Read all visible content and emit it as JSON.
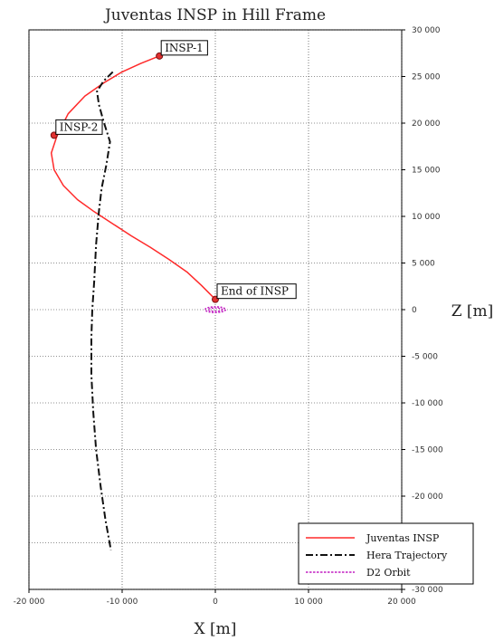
{
  "chart_data": {
    "type": "line",
    "title": "Juventas INSP in Hill Frame",
    "xlabel": "X [m]",
    "ylabel": "Z [m]",
    "xlim": [
      -20000,
      20000
    ],
    "ylim": [
      -30000,
      30000
    ],
    "x_ticks": [
      -20000,
      -10000,
      0,
      10000,
      20000
    ],
    "x_tick_labels": [
      "-20 000",
      "-10 000",
      "0",
      "10 000",
      "20 000"
    ],
    "y_ticks": [
      30000,
      25000,
      20000,
      15000,
      10000,
      5000,
      0,
      -5000,
      -10000,
      -15000,
      -20000,
      -25000,
      -30000
    ],
    "y_tick_labels": [
      "30 000",
      "25 000",
      "20 000",
      "15 000",
      "10 000",
      "5 000",
      "0",
      "-5 000",
      "-10 000",
      "-15 000",
      "-20 000",
      "-25 000",
      "-30 000"
    ],
    "grid": true,
    "legend_position": "bottom-right",
    "series": [
      {
        "name": "Juventas INSP",
        "color": "#ff2a2a",
        "style": "solid",
        "points": [
          [
            -6000,
            27200
          ],
          [
            -8000,
            26400
          ],
          [
            -10000,
            25500
          ],
          [
            -12000,
            24300
          ],
          [
            -14000,
            22900
          ],
          [
            -15800,
            21000
          ],
          [
            -17000,
            18600
          ],
          [
            -17600,
            16800
          ],
          [
            -17300,
            15000
          ],
          [
            -16300,
            13300
          ],
          [
            -14800,
            11800
          ],
          [
            -13000,
            10500
          ],
          [
            -11000,
            9200
          ],
          [
            -9000,
            7900
          ],
          [
            -7000,
            6700
          ],
          [
            -5000,
            5400
          ],
          [
            -3000,
            4000
          ],
          [
            -1500,
            2600
          ],
          [
            0,
            1100
          ]
        ]
      },
      {
        "name": "Hera Trajectory",
        "color": "#111111",
        "style": "dashdot",
        "points": [
          [
            -11000,
            25500
          ],
          [
            -12000,
            24500
          ],
          [
            -12700,
            23400
          ],
          [
            -12500,
            22000
          ],
          [
            -12000,
            20200
          ],
          [
            -11300,
            18000
          ],
          [
            -11700,
            15500
          ],
          [
            -12200,
            13000
          ],
          [
            -12500,
            10500
          ],
          [
            -12800,
            7000
          ],
          [
            -13000,
            3000
          ],
          [
            -13200,
            0
          ],
          [
            -13300,
            -3000
          ],
          [
            -13300,
            -7000
          ],
          [
            -13100,
            -11000
          ],
          [
            -12800,
            -15000
          ],
          [
            -12300,
            -19000
          ],
          [
            -11800,
            -22500
          ],
          [
            -11200,
            -25800
          ]
        ]
      },
      {
        "name": "D2 Orbit",
        "color": "#c21ec2",
        "style": "dotted",
        "center": [
          0,
          0
        ],
        "rx": 1100,
        "ry": 300
      }
    ],
    "annotations": [
      {
        "label": "INSP-1",
        "x": -6000,
        "y": 27200
      },
      {
        "label": "INSP-2",
        "x": -17300,
        "y": 18700
      },
      {
        "label": "End of INSP",
        "x": 0,
        "y": 1100
      }
    ]
  }
}
